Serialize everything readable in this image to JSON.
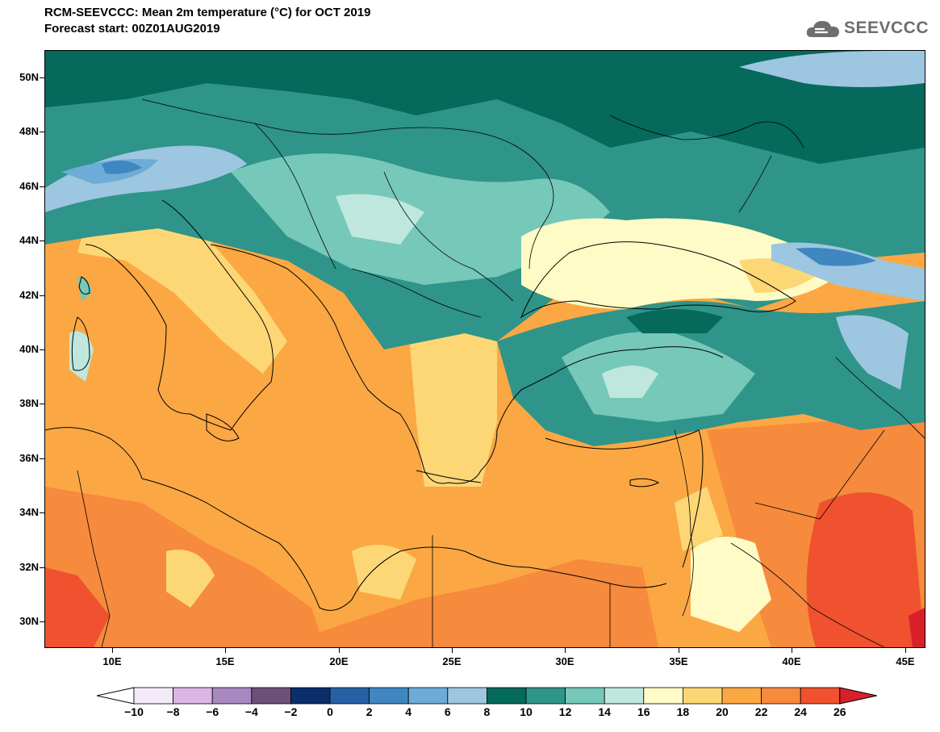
{
  "title": {
    "line1": "RCM-SEEVCCC: Mean 2m temperature (°C) for OCT 2019",
    "line2": "Forecast start: 00Z01AUG2019"
  },
  "logo": {
    "text": "SEEVCCC",
    "icon": "cloud-icon"
  },
  "axes": {
    "lat_labels": [
      "50N",
      "48N",
      "46N",
      "44N",
      "42N",
      "40N",
      "38N",
      "36N",
      "34N",
      "32N",
      "30N"
    ],
    "lon_labels": [
      "10E",
      "15E",
      "20E",
      "25E",
      "30E",
      "35E",
      "40E",
      "45E"
    ]
  },
  "colorbar": {
    "labels": [
      "−10",
      "−8",
      "−6",
      "−4",
      "−2",
      "0",
      "2",
      "4",
      "6",
      "8",
      "10",
      "12",
      "14",
      "16",
      "18",
      "20",
      "22",
      "24",
      "26"
    ],
    "colors": [
      "#f3eaf8",
      "#dcb6e6",
      "#a889c0",
      "#6d4f79",
      "#0b2f6a",
      "#2760a3",
      "#3f87c1",
      "#6cacd6",
      "#9dc6e0",
      "#05695b",
      "#2f9489",
      "#76c8b8",
      "#bfe7de",
      "#fffbc6",
      "#fdd776",
      "#fba844",
      "#f68a3d",
      "#f0512e"
    ],
    "under_color": "#ffffff",
    "over_color": "#d8202a"
  }
}
